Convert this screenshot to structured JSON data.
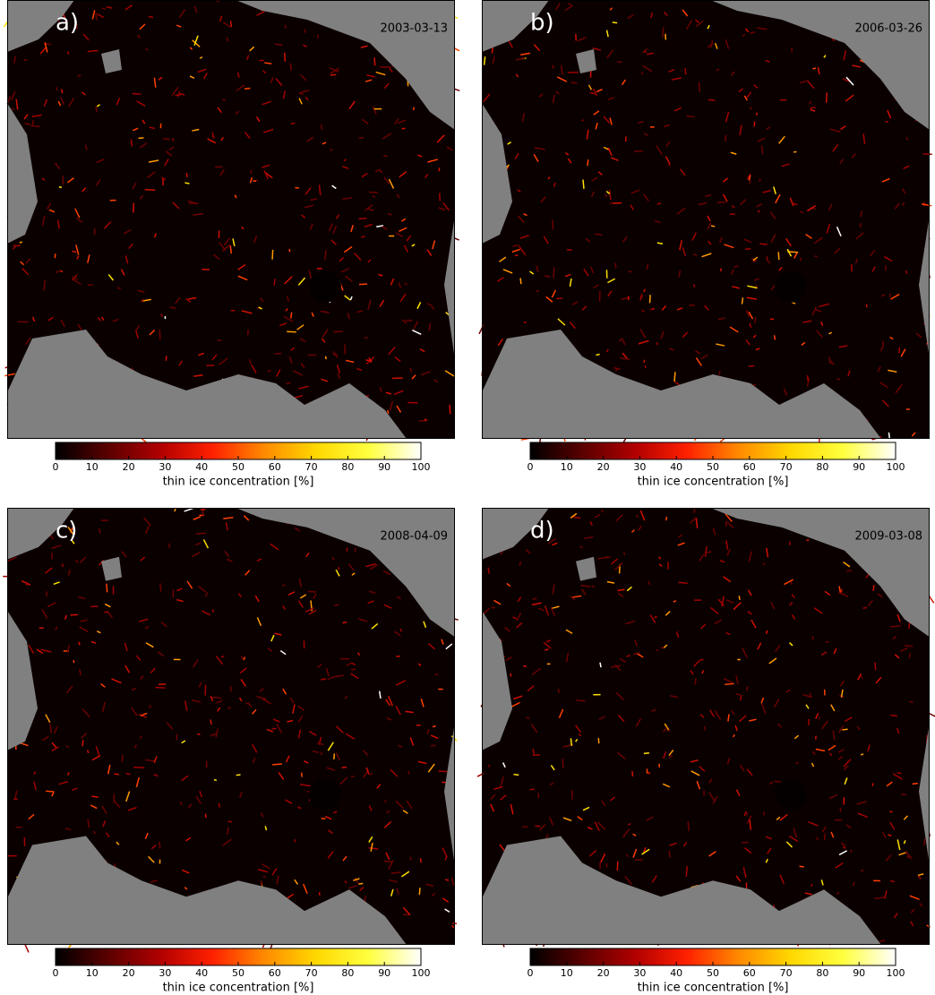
{
  "colormap": [
    "#000000",
    "#5a0000",
    "#b00000",
    "#ff2000",
    "#ff8a00",
    "#ffd800",
    "#ffff40",
    "#ffffff"
  ],
  "panels": [
    {
      "label": "a)",
      "date": "2003-03-13",
      "colorbar": {
        "lim": [
          0,
          100
        ],
        "ticks": [
          0,
          10,
          20,
          30,
          40,
          50,
          60,
          70,
          80,
          90,
          100
        ],
        "label": "thin ice concentration [%]"
      }
    },
    {
      "label": "b)",
      "date": "2006-03-26",
      "colorbar": {
        "lim": [
          0,
          100
        ],
        "ticks": [
          0,
          10,
          20,
          30,
          40,
          50,
          60,
          70,
          80,
          90,
          100
        ],
        "label": "thin ice concentration [%]"
      }
    },
    {
      "label": "c)",
      "date": "2008-04-09",
      "colorbar": {
        "lim": [
          0,
          100
        ],
        "ticks": [
          0,
          10,
          20,
          30,
          40,
          50,
          60,
          70,
          80,
          90,
          100
        ],
        "label": "thin ice concentration [%]"
      }
    },
    {
      "label": "d)",
      "date": "2009-03-08",
      "colorbar": {
        "lim": [
          0,
          100
        ],
        "ticks": [
          0,
          10,
          20,
          30,
          40,
          50,
          60,
          70,
          80,
          90,
          100
        ],
        "label": "thin ice concentration [%]"
      }
    }
  ]
}
